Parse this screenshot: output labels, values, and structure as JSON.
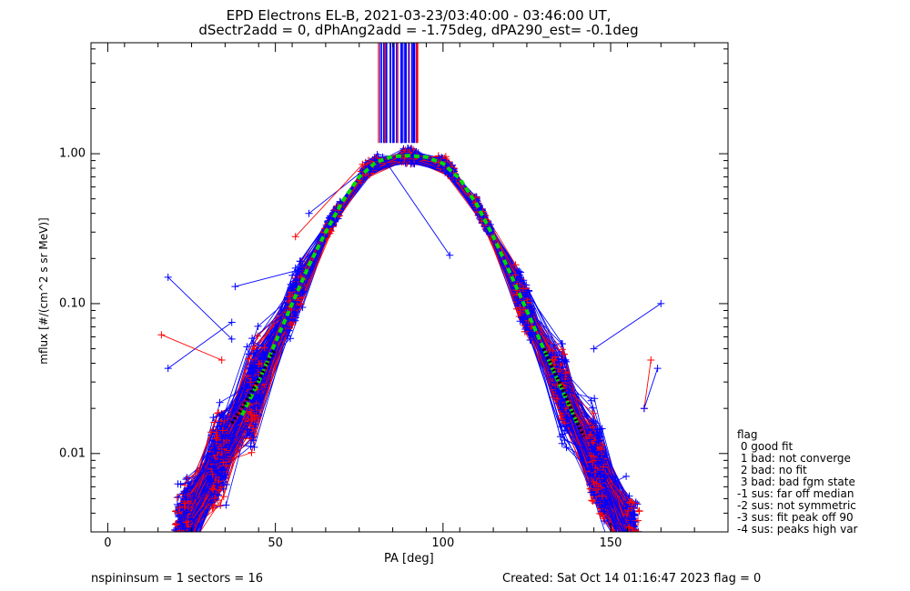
{
  "title_lines": [
    "EPD Electrons EL-B, 2021-03-23/03:40:00 - 03:46:00 UT,",
    "dSectr2add = 0, dPhAng2add = -1.75deg, dPA290_est=  -0.1deg"
  ],
  "footer": {
    "left": "nspininsum =  1  sectors = 16",
    "right": "Created: Sat Oct 14 01:16:47 2023   flag = 0"
  },
  "legend": {
    "header": "flag",
    "items": [
      " 0 good fit",
      " 1 bad: not converge",
      " 2 bad: no fit",
      " 3 bad: bad fgm state",
      "-1 sus: far off median",
      "-2 sus: not symmetric",
      "-3 sus: fit peak off 90",
      "-4 sus: peaks high var"
    ]
  },
  "chart_data": {
    "type": "line",
    "title": "EPD Electrons EL-B, 2021-03-23/03:40:00 - 03:46:00 UT, dSectr2add = 0, dPhAng2add = -1.75deg, dPA290_est=  -0.1deg",
    "xlabel": "PA [deg]",
    "ylabel": "mflux [#/(cm^2 s sr MeV)]",
    "xlim": [
      -5,
      185
    ],
    "ylim": [
      0.003,
      5.5
    ],
    "yscale": "log",
    "x_ticks": [
      0,
      50,
      100,
      150
    ],
    "x_tick_labels": [
      "0",
      "50",
      "100",
      "150"
    ],
    "y_ticks": [
      0.01,
      0.1,
      1.0
    ],
    "y_tick_labels": [
      "0.01",
      "0.10",
      "1.00"
    ],
    "grid": false,
    "legend_position": "right",
    "colors": {
      "red_series": "#ff0000",
      "blue_series": "#0000ff",
      "fit_median": "#00dd00",
      "fit_dotted": "#000000"
    },
    "series": [
      {
        "color": "#00dd00",
        "style": "dashed",
        "x": [
          40,
          45,
          50,
          55,
          60,
          65,
          70,
          75,
          80,
          85,
          90,
          95,
          100,
          105,
          110,
          115,
          120,
          125,
          130,
          135,
          140
        ],
        "y": [
          0.018,
          0.03,
          0.055,
          0.1,
          0.18,
          0.3,
          0.48,
          0.7,
          0.88,
          0.96,
          0.97,
          0.95,
          0.86,
          0.68,
          0.46,
          0.28,
          0.16,
          0.09,
          0.05,
          0.028,
          0.016
        ]
      },
      {
        "color": "#000000",
        "style": "dotted",
        "x": [
          37,
          40,
          43,
          46,
          48,
          50
        ],
        "y": [
          0.016,
          0.02,
          0.026,
          0.034,
          0.042,
          0.05
        ]
      },
      {
        "color": "#000000",
        "style": "dotted",
        "x": [
          130,
          133,
          136,
          139,
          142
        ],
        "y": [
          0.05,
          0.036,
          0.026,
          0.018,
          0.013
        ]
      }
    ],
    "outliers": [
      {
        "color": "#0000ff",
        "x": [
          18,
          37
        ],
        "y": [
          0.037,
          0.075
        ]
      },
      {
        "color": "#0000ff",
        "x": [
          18,
          37
        ],
        "y": [
          0.15,
          0.058
        ]
      },
      {
        "color": "#0000ff",
        "x": [
          38,
          58
        ],
        "y": [
          0.13,
          0.17
        ]
      },
      {
        "color": "#ff0000",
        "x": [
          16,
          34
        ],
        "y": [
          0.062,
          0.042
        ]
      },
      {
        "color": "#0000ff",
        "x": [
          145,
          165
        ],
        "y": [
          0.05,
          0.1
        ]
      },
      {
        "color": "#0000ff",
        "x": [
          82,
          102
        ],
        "y": [
          0.95,
          0.21
        ]
      },
      {
        "color": "#0000ff",
        "x": [
          60,
          80
        ],
        "y": [
          0.4,
          0.9
        ]
      },
      {
        "color": "#ff0000",
        "x": [
          56,
          76
        ],
        "y": [
          0.28,
          0.85
        ]
      },
      {
        "color": "#ff0000",
        "x": [
          162,
          160
        ],
        "y": [
          0.042,
          0.02
        ]
      },
      {
        "color": "#0000ff",
        "x": [
          164,
          160
        ],
        "y": [
          0.037,
          0.02
        ]
      }
    ]
  }
}
